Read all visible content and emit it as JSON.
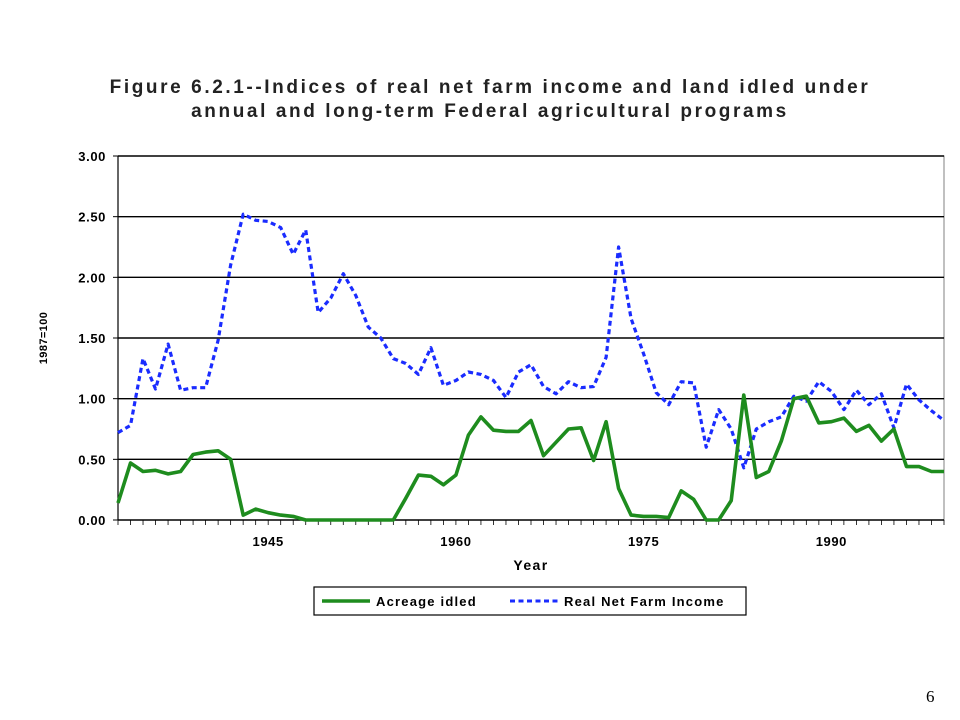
{
  "slide": {
    "number": "6"
  },
  "chart_data": {
    "type": "line",
    "title": "Figure 6.2.1--Indices of real net farm income and land idled under annual and long-term Federal agricultural programs",
    "title_lines": [
      "Figure 6.2.1--Indices of real net farm income and land idled under",
      "annual and long-term Federal agricultural programs"
    ],
    "xlabel": "Year",
    "ylabel": "1987=100",
    "xlim": [
      1933,
      1999
    ],
    "ylim": [
      0,
      3
    ],
    "x_ticks": [
      1945,
      1960,
      1975,
      1990
    ],
    "y_ticks": [
      "0.00",
      "0.50",
      "1.00",
      "1.50",
      "2.00",
      "2.50",
      "3.00"
    ],
    "grid": "horizontal",
    "legend_position": "bottom",
    "colors": {
      "acreage": "#1e8c1e",
      "income": "#1a2cff"
    },
    "series": [
      {
        "name": "Acreage idled",
        "style": "solid",
        "x": [
          1933,
          1934,
          1935,
          1936,
          1937,
          1938,
          1939,
          1940,
          1941,
          1942,
          1943,
          1944,
          1945,
          1946,
          1947,
          1948,
          1949,
          1950,
          1951,
          1952,
          1953,
          1954,
          1955,
          1956,
          1957,
          1958,
          1959,
          1960,
          1961,
          1962,
          1963,
          1964,
          1965,
          1966,
          1967,
          1968,
          1969,
          1970,
          1971,
          1972,
          1973,
          1974,
          1975,
          1976,
          1977,
          1978,
          1979,
          1980,
          1981,
          1982,
          1983,
          1984,
          1985,
          1986,
          1987,
          1988,
          1989,
          1990,
          1991,
          1992,
          1993,
          1994,
          1995,
          1996,
          1997,
          1998,
          1999
        ],
        "values": [
          0.14,
          0.47,
          0.4,
          0.41,
          0.38,
          0.4,
          0.54,
          0.56,
          0.57,
          0.5,
          0.04,
          0.09,
          0.06,
          0.04,
          0.03,
          0.0,
          0.0,
          0.0,
          0.0,
          0.0,
          0.0,
          0.0,
          0.0,
          0.18,
          0.37,
          0.36,
          0.29,
          0.37,
          0.7,
          0.85,
          0.74,
          0.73,
          0.73,
          0.82,
          0.53,
          0.64,
          0.75,
          0.76,
          0.49,
          0.81,
          0.26,
          0.04,
          0.03,
          0.03,
          0.02,
          0.24,
          0.17,
          0.0,
          0.0,
          0.16,
          1.03,
          0.35,
          0.4,
          0.65,
          1.0,
          1.02,
          0.8,
          0.81,
          0.84,
          0.73,
          0.78,
          0.65,
          0.75,
          0.44,
          0.44,
          0.4,
          0.4
        ]
      },
      {
        "name": "Real Net Farm Income",
        "style": "dashed",
        "x": [
          1933,
          1934,
          1935,
          1936,
          1937,
          1938,
          1939,
          1940,
          1941,
          1942,
          1943,
          1944,
          1945,
          1946,
          1947,
          1948,
          1949,
          1950,
          1951,
          1952,
          1953,
          1954,
          1955,
          1956,
          1957,
          1958,
          1959,
          1960,
          1961,
          1962,
          1963,
          1964,
          1965,
          1966,
          1967,
          1968,
          1969,
          1970,
          1971,
          1972,
          1973,
          1974,
          1975,
          1976,
          1977,
          1978,
          1979,
          1980,
          1981,
          1982,
          1983,
          1984,
          1985,
          1986,
          1987,
          1988,
          1989,
          1990,
          1991,
          1992,
          1993,
          1994,
          1995,
          1996,
          1997,
          1998,
          1999
        ],
        "values": [
          0.72,
          0.78,
          1.33,
          1.08,
          1.45,
          1.07,
          1.09,
          1.09,
          1.48,
          2.1,
          2.52,
          2.47,
          2.46,
          2.41,
          2.19,
          2.39,
          1.71,
          1.83,
          2.03,
          1.85,
          1.59,
          1.5,
          1.33,
          1.29,
          1.2,
          1.42,
          1.11,
          1.15,
          1.22,
          1.2,
          1.15,
          1.01,
          1.22,
          1.28,
          1.1,
          1.04,
          1.14,
          1.09,
          1.1,
          1.34,
          2.25,
          1.66,
          1.37,
          1.05,
          0.95,
          1.14,
          1.13,
          0.6,
          0.91,
          0.75,
          0.43,
          0.75,
          0.81,
          0.85,
          1.02,
          0.98,
          1.14,
          1.06,
          0.91,
          1.07,
          0.95,
          1.04,
          0.76,
          1.12,
          0.99,
          0.9,
          0.82
        ]
      }
    ]
  }
}
